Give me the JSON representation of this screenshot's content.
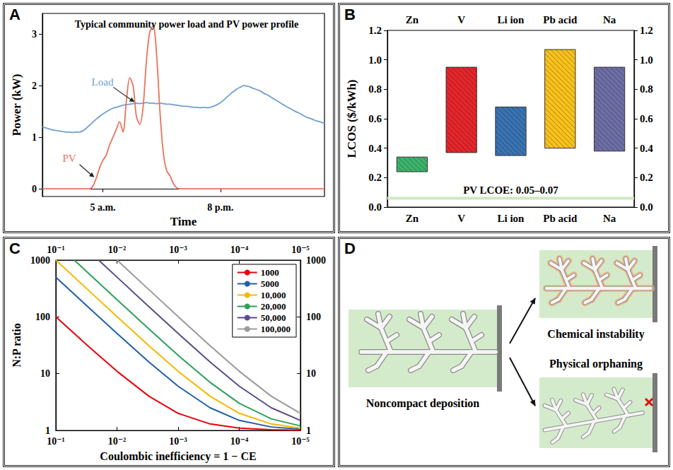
{
  "chart_data": [
    {
      "panel": "A",
      "type": "line",
      "title": "Typical community power load and PV power profile",
      "x_label": "Time",
      "y_label": "Power (kW)",
      "categories": [
        null,
        null,
        null,
        null,
        null,
        null,
        null,
        null,
        null,
        null,
        null,
        null,
        null,
        null,
        null,
        null,
        null,
        null,
        "5 a.m.",
        null,
        null,
        null,
        null,
        null,
        null,
        null,
        null,
        null,
        null,
        null,
        null,
        null,
        null,
        null,
        null,
        null,
        null,
        null,
        null,
        null,
        null,
        null,
        null,
        null,
        null,
        null,
        null,
        null,
        null,
        null,
        null,
        null,
        null,
        "8 p.m.",
        null,
        null,
        null,
        null,
        null,
        null,
        null,
        null,
        null,
        null,
        null,
        null,
        null,
        null,
        null,
        null,
        null,
        null,
        null,
        null,
        null,
        null,
        null,
        null,
        null,
        null,
        null,
        null,
        null,
        null,
        null
      ],
      "series": [
        {
          "name": "Load",
          "color": "#6f9fd0",
          "values": [
            1.2,
            1.18,
            1.16,
            1.14,
            1.13,
            1.12,
            1.11,
            1.1,
            1.1,
            1.09,
            1.1,
            1.1,
            1.12,
            1.17,
            1.23,
            1.29,
            1.35,
            1.4,
            1.45,
            1.49,
            1.53,
            1.56,
            1.58,
            1.6,
            1.62,
            1.63,
            1.64,
            1.65,
            1.66,
            1.65,
            1.66,
            1.67,
            1.66,
            1.66,
            1.65,
            1.66,
            1.65,
            1.64,
            1.64,
            1.63,
            1.62,
            1.61,
            1.6,
            1.6,
            1.59,
            1.58,
            1.58,
            1.57,
            1.58,
            1.57,
            1.58,
            1.6,
            1.63,
            1.67,
            1.72,
            1.78,
            1.84,
            1.89,
            1.94,
            1.97,
            2.0,
            1.99,
            1.97,
            1.94,
            1.92,
            1.89,
            1.85,
            1.82,
            1.78,
            1.74,
            1.7,
            1.66,
            1.62,
            1.58,
            1.55,
            1.51,
            1.48,
            1.45,
            1.41,
            1.38,
            1.36,
            1.33,
            1.31,
            1.29,
            1.27
          ]
        },
        {
          "name": "PV",
          "color": "#e8735c",
          "values": [
            0,
            0,
            0,
            0,
            0,
            0,
            0,
            0,
            0,
            0,
            0,
            0,
            0,
            0,
            0,
            0.05,
            0.2,
            0.4,
            0.55,
            0.65,
            0.85,
            1.0,
            1.15,
            1.3,
            1.1,
            1.7,
            2.15,
            2.0,
            1.4,
            1.25,
            1.6,
            2.5,
            3.05,
            3.15,
            2.6,
            1.5,
            0.7,
            0.35,
            0.25,
            0.1,
            0.02,
            0,
            0,
            0,
            0,
            0,
            0,
            0,
            0,
            0,
            0,
            0,
            0,
            0,
            0,
            0,
            0,
            0,
            0,
            0,
            0,
            0,
            0,
            0,
            0,
            0,
            0,
            0,
            0,
            0,
            0,
            0,
            0,
            0,
            0,
            0,
            0,
            0,
            0,
            0,
            0,
            0,
            0,
            0,
            0
          ]
        }
      ],
      "ylim": [
        -0.15,
        3.4
      ],
      "yticks": [
        0,
        1,
        2,
        3
      ],
      "grid": false
    },
    {
      "panel": "B",
      "type": "bar",
      "y_label": "LCOS ($/kWh)",
      "categories": [
        "Zn",
        "V",
        "Li ion",
        "Pb acid",
        "Na"
      ],
      "low": [
        0.24,
        0.37,
        0.35,
        0.4,
        0.38
      ],
      "high": [
        0.34,
        0.95,
        0.68,
        1.07,
        0.95
      ],
      "colors": [
        "#3db36b",
        "#e4262b",
        "#3a73b2",
        "#f7c21b",
        "#6e6ea6"
      ],
      "ylim": [
        0,
        1.2
      ],
      "yticks": [
        {
          "value": 0,
          "label": "0.0"
        },
        0.2,
        0.4,
        0.6,
        0.8,
        {
          "value": 1,
          "label": "1.0"
        },
        1.2
      ],
      "y2lim": [
        0,
        1.2
      ],
      "y2ticks": [
        {
          "value": 0,
          "label": "0.0"
        },
        0.2,
        0.4,
        0.6,
        0.8,
        {
          "value": 1,
          "label": "1.0"
        },
        1.2
      ],
      "band": {
        "label": "PV LCOE: 0.05–0.07",
        "low": 0.05,
        "high": 0.07,
        "color": "#cfe8c4"
      },
      "grid": false
    },
    {
      "panel": "C",
      "type": "line",
      "log": true,
      "x_label": "Coulombic inefficiency = 1 − CE",
      "y_label": "N:P ratio",
      "xlim": [
        0.1,
        1e-05
      ],
      "xticks": [
        {
          "value": 0.1,
          "label": "10⁻¹"
        },
        {
          "value": 0.01,
          "label": "10⁻²"
        },
        {
          "value": 0.001,
          "label": "10⁻³"
        },
        {
          "value": 0.0001,
          "label": "10⁻⁴"
        },
        {
          "value": 1e-05,
          "label": "10⁻⁵"
        }
      ],
      "ylim": [
        1,
        1000
      ],
      "yticks": [
        1,
        10,
        100,
        1000
      ],
      "y2lim": [
        1,
        1000
      ],
      "y2ticks": [
        1,
        10,
        100,
        1000
      ],
      "series": [
        {
          "name": "1000",
          "color": "#e8000b",
          "x": [
            0.1,
            0.03,
            0.01,
            0.003,
            0.001,
            0.0003,
            0.0001,
            3e-05,
            1e-05
          ],
          "values": [
            100,
            31,
            11,
            4,
            2,
            1.3,
            1.1,
            1.03,
            1.01
          ]
        },
        {
          "name": "5000",
          "color": "#1f5fa8",
          "x": [
            0.1,
            0.03,
            0.01,
            0.003,
            0.001,
            0.0003,
            0.0001,
            3e-05,
            1e-05
          ],
          "values": [
            500,
            151,
            51,
            16,
            6,
            2.5,
            1.5,
            1.15,
            1.05
          ]
        },
        {
          "name": "10,000",
          "color": "#f5b800",
          "x": [
            0.1,
            0.03,
            0.01,
            0.003,
            0.001,
            0.0003,
            0.0001,
            3e-05,
            1e-05
          ],
          "values": [
            1000,
            301,
            101,
            31,
            11,
            4,
            2,
            1.3,
            1.1
          ]
        },
        {
          "name": "20,000",
          "color": "#2ca05a",
          "x": [
            0.05,
            0.03,
            0.01,
            0.003,
            0.001,
            0.0003,
            0.0001,
            3e-05,
            1e-05
          ],
          "values": [
            1000,
            601,
            201,
            61,
            21,
            7,
            3,
            1.6,
            1.2
          ]
        },
        {
          "name": "50,000",
          "color": "#5a4a8a",
          "x": [
            0.02,
            0.01,
            0.003,
            0.001,
            0.0003,
            0.0001,
            3e-05,
            1e-05
          ],
          "values": [
            1000,
            501,
            151,
            51,
            16,
            6,
            2.5,
            1.5
          ]
        },
        {
          "name": "100,000",
          "color": "#9a9a9a",
          "x": [
            0.01,
            0.003,
            0.001,
            0.0003,
            0.0001,
            3e-05,
            1e-05
          ],
          "values": [
            1000,
            301,
            101,
            31,
            11,
            4,
            2
          ]
        }
      ],
      "legend": "top-right",
      "grid": false
    }
  ],
  "diagram": {
    "panel": "D",
    "type": "diagram",
    "left_label": "Noncompact deposition",
    "right_top_label": "Chemical instability",
    "right_bottom_label": "Physical orphaning"
  }
}
